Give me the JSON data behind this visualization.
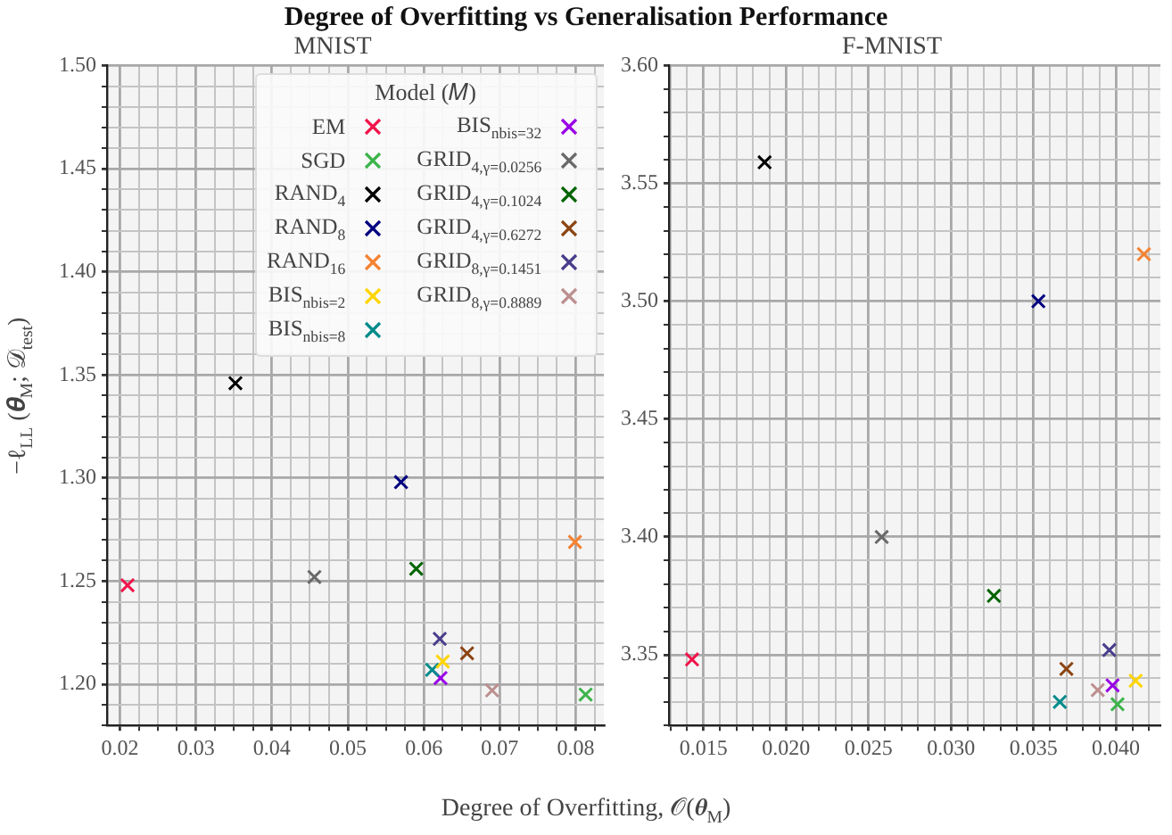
{
  "chart_data": [
    {
      "type": "scatter",
      "title": "MNIST",
      "annotations": [
        "Degree of Overfitting vs Generalisation Performance"
      ],
      "xlabel": "Degree of Overfitting, 𝒪(𝜽$_{M}$)",
      "ylabel": "−ℓ$_{LL}$ (𝜽$_{M}$; 𝒟$_{test}$)",
      "legend_title": "Model (𝑀)",
      "legend": "top right",
      "marker": "cross",
      "grid": true,
      "xlim": [
        0.0183,
        0.0837
      ],
      "ylim": [
        1.18,
        1.5
      ],
      "xticks": [
        0.02,
        {
          "value": 0.0225,
          "label": null
        },
        {
          "value": 0.025,
          "label": null
        },
        {
          "value": 0.0275,
          "label": null
        },
        0.03,
        {
          "value": 0.0325,
          "label": null
        },
        {
          "value": 0.035,
          "label": null
        },
        {
          "value": 0.0375,
          "label": null
        },
        0.04,
        {
          "value": 0.0425,
          "label": null
        },
        {
          "value": 0.045,
          "label": null
        },
        {
          "value": 0.0475,
          "label": null
        },
        0.05,
        {
          "value": 0.0525,
          "label": null
        },
        {
          "value": 0.055,
          "label": null
        },
        {
          "value": 0.0575,
          "label": null
        },
        0.06,
        {
          "value": 0.0625,
          "label": null
        },
        {
          "value": 0.065,
          "label": null
        },
        {
          "value": 0.0675,
          "label": null
        },
        0.07,
        {
          "value": 0.0725,
          "label": null
        },
        {
          "value": 0.075,
          "label": null
        },
        {
          "value": 0.0775,
          "label": null
        },
        0.08,
        {
          "value": 0.0825,
          "label": null
        }
      ],
      "yticks": [
        {
          "value": 1.18,
          "label": null
        },
        {
          "value": 1.19,
          "label": null
        },
        {
          "value": 1.2,
          "label": "1.20"
        },
        {
          "value": 1.21,
          "label": null
        },
        {
          "value": 1.22,
          "label": null
        },
        {
          "value": 1.23,
          "label": null
        },
        {
          "value": 1.24,
          "label": null
        },
        1.25,
        {
          "value": 1.26,
          "label": null
        },
        {
          "value": 1.27,
          "label": null
        },
        {
          "value": 1.28,
          "label": null
        },
        {
          "value": 1.29,
          "label": null
        },
        {
          "value": 1.3,
          "label": "1.30"
        },
        {
          "value": 1.31,
          "label": null
        },
        {
          "value": 1.32,
          "label": null
        },
        {
          "value": 1.33,
          "label": null
        },
        {
          "value": 1.34,
          "label": null
        },
        1.35,
        {
          "value": 1.36,
          "label": null
        },
        {
          "value": 1.37,
          "label": null
        },
        {
          "value": 1.38,
          "label": null
        },
        {
          "value": 1.39,
          "label": null
        },
        {
          "value": 1.4,
          "label": "1.40"
        },
        {
          "value": 1.41,
          "label": null
        },
        {
          "value": 1.42,
          "label": null
        },
        {
          "value": 1.43,
          "label": null
        },
        {
          "value": 1.44,
          "label": null
        },
        1.45,
        {
          "value": 1.46,
          "label": null
        },
        {
          "value": 1.47,
          "label": null
        },
        {
          "value": 1.48,
          "label": null
        },
        {
          "value": 1.49,
          "label": null
        },
        {
          "value": 1.5,
          "label": "1.50"
        }
      ],
      "series": [
        {
          "name": "EM",
          "color": "#f0144b",
          "x": [
            0.021
          ],
          "values": [
            1.248
          ]
        },
        {
          "name": "SGD",
          "color": "#3cb44b",
          "x": [
            0.0813
          ],
          "values": [
            1.195
          ]
        },
        {
          "name": "RAND$_{4}$",
          "color": "#000000",
          "x": [
            0.0352
          ],
          "values": [
            1.346
          ]
        },
        {
          "name": "RAND$_{8}$",
          "color": "#000080",
          "x": [
            0.057
          ],
          "values": [
            1.298
          ]
        },
        {
          "name": "RAND$_{16}$",
          "color": "#f58231",
          "x": [
            0.0799
          ],
          "values": [
            1.269
          ]
        },
        {
          "name": "BIS$_{nbis=2}$",
          "color": "#ffd500",
          "x": [
            0.0625
          ],
          "values": [
            1.211
          ]
        },
        {
          "name": "BIS$_{nbis=8}$",
          "color": "#008b8b",
          "x": [
            0.0611
          ],
          "values": [
            1.207
          ]
        },
        {
          "name": "BIS$_{nbis=32}$",
          "color": "#9900e6",
          "x": [
            0.0622
          ],
          "values": [
            1.203
          ]
        },
        {
          "name": "GRID$_{4,γ=0.0256}$",
          "color": "#696969",
          "x": [
            0.0456
          ],
          "values": [
            1.252
          ]
        },
        {
          "name": "GRID$_{4,γ=0.1024}$",
          "color": "#006400",
          "x": [
            0.059
          ],
          "values": [
            1.256
          ]
        },
        {
          "name": "GRID$_{4,γ=0.6272}$",
          "color": "#8b4513",
          "x": [
            0.0657
          ],
          "values": [
            1.215
          ]
        },
        {
          "name": "GRID$_{8,γ=0.1451}$",
          "color": "#483d8b",
          "x": [
            0.0621
          ],
          "values": [
            1.222
          ]
        },
        {
          "name": "GRID$_{8,γ=0.8889}$",
          "color": "#bc8f8f",
          "x": [
            0.069
          ],
          "values": [
            1.197
          ]
        }
      ]
    },
    {
      "type": "scatter",
      "title": "F-MNIST",
      "marker": "cross",
      "grid": true,
      "xlim": [
        0.0129,
        0.0427
      ],
      "ylim": [
        3.32,
        3.6
      ],
      "xticks": [
        {
          "value": 0.013,
          "label": null
        },
        {
          "value": 0.014,
          "label": null
        },
        0.015,
        {
          "value": 0.016,
          "label": null
        },
        {
          "value": 0.017,
          "label": null
        },
        {
          "value": 0.018,
          "label": null
        },
        {
          "value": 0.019,
          "label": null
        },
        {
          "value": 0.02,
          "label": "0.020"
        },
        {
          "value": 0.021,
          "label": null
        },
        {
          "value": 0.022,
          "label": null
        },
        {
          "value": 0.023,
          "label": null
        },
        {
          "value": 0.024,
          "label": null
        },
        0.025,
        {
          "value": 0.026,
          "label": null
        },
        {
          "value": 0.027,
          "label": null
        },
        {
          "value": 0.028,
          "label": null
        },
        {
          "value": 0.029,
          "label": null
        },
        {
          "value": 0.03,
          "label": "0.030"
        },
        {
          "value": 0.031,
          "label": null
        },
        {
          "value": 0.032,
          "label": null
        },
        {
          "value": 0.033,
          "label": null
        },
        {
          "value": 0.034,
          "label": null
        },
        0.035,
        {
          "value": 0.036,
          "label": null
        },
        {
          "value": 0.037,
          "label": null
        },
        {
          "value": 0.038,
          "label": null
        },
        {
          "value": 0.039,
          "label": null
        },
        {
          "value": 0.04,
          "label": "0.040"
        },
        {
          "value": 0.041,
          "label": null
        },
        {
          "value": 0.042,
          "label": null
        }
      ],
      "yticks": [
        {
          "value": 3.32,
          "label": null
        },
        {
          "value": 3.33,
          "label": null
        },
        {
          "value": 3.34,
          "label": null
        },
        3.35,
        {
          "value": 3.36,
          "label": null
        },
        {
          "value": 3.37,
          "label": null
        },
        {
          "value": 3.38,
          "label": null
        },
        {
          "value": 3.39,
          "label": null
        },
        {
          "value": 3.4,
          "label": "3.40"
        },
        {
          "value": 3.41,
          "label": null
        },
        {
          "value": 3.42,
          "label": null
        },
        {
          "value": 3.43,
          "label": null
        },
        {
          "value": 3.44,
          "label": null
        },
        3.45,
        {
          "value": 3.46,
          "label": null
        },
        {
          "value": 3.47,
          "label": null
        },
        {
          "value": 3.48,
          "label": null
        },
        {
          "value": 3.49,
          "label": null
        },
        {
          "value": 3.5,
          "label": "3.50"
        },
        {
          "value": 3.51,
          "label": null
        },
        {
          "value": 3.52,
          "label": null
        },
        {
          "value": 3.53,
          "label": null
        },
        {
          "value": 3.54,
          "label": null
        },
        3.55,
        {
          "value": 3.56,
          "label": null
        },
        {
          "value": 3.57,
          "label": null
        },
        {
          "value": 3.58,
          "label": null
        },
        {
          "value": 3.59,
          "label": null
        },
        {
          "value": 3.6,
          "label": "3.60"
        }
      ],
      "series": [
        {
          "color": "#f0144b",
          "x": [
            0.0143
          ],
          "values": [
            3.348
          ]
        },
        {
          "color": "#3cb44b",
          "x": [
            0.0401
          ],
          "values": [
            3.329
          ]
        },
        {
          "color": "#000000",
          "x": [
            0.0187
          ],
          "values": [
            3.559
          ]
        },
        {
          "color": "#000080",
          "x": [
            0.0353
          ],
          "values": [
            3.5
          ]
        },
        {
          "color": "#f58231",
          "x": [
            0.0417
          ],
          "values": [
            3.52
          ]
        },
        {
          "color": "#ffd500",
          "x": [
            0.0412
          ],
          "values": [
            3.339
          ]
        },
        {
          "color": "#008b8b",
          "x": [
            0.0366
          ],
          "values": [
            3.33
          ]
        },
        {
          "color": "#9900e6",
          "x": [
            0.0398
          ],
          "values": [
            3.337
          ]
        },
        {
          "color": "#696969",
          "x": [
            0.0258
          ],
          "values": [
            3.4
          ]
        },
        {
          "color": "#006400",
          "x": [
            0.0326
          ],
          "values": [
            3.375
          ]
        },
        {
          "color": "#8b4513",
          "x": [
            0.037
          ],
          "values": [
            3.344
          ]
        },
        {
          "color": "#483d8b",
          "x": [
            0.0396
          ],
          "values": [
            3.352
          ]
        },
        {
          "color": "#bc8f8f",
          "x": [
            0.0389
          ],
          "values": [
            3.335
          ]
        }
      ]
    }
  ]
}
